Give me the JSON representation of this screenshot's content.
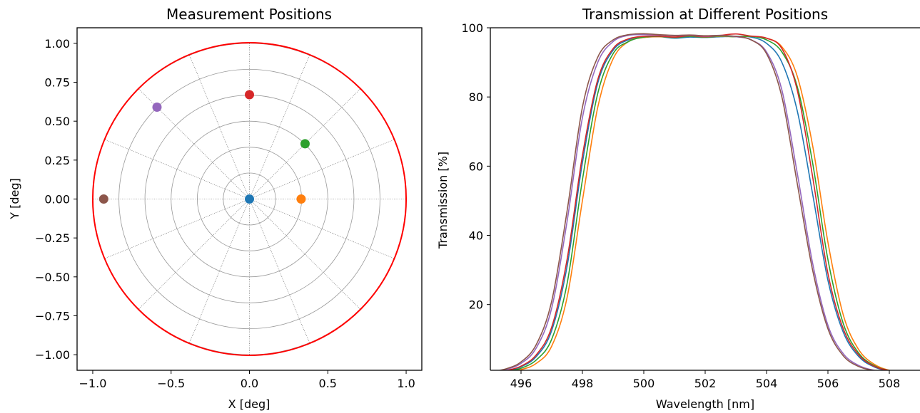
{
  "chart_data": [
    {
      "type": "scatter",
      "title": "Measurement Positions",
      "xlabel": "X [deg]",
      "ylabel": "Y [deg]",
      "xlim": [
        -1.1,
        1.1
      ],
      "ylim": [
        -1.1,
        1.1
      ],
      "xticks": [
        -1.0,
        -0.5,
        0.0,
        0.5,
        1.0
      ],
      "xtick_labels": [
        "−1.0",
        "−0.5",
        "0.0",
        "0.5",
        "1.0"
      ],
      "yticks": [
        1.0,
        0.75,
        0.5,
        0.25,
        0.0,
        -0.25,
        -0.5,
        -0.75,
        -1.0
      ],
      "ytick_labels": [
        "1.00",
        "0.75",
        "0.50",
        "0.25",
        "0.00",
        "−0.25",
        "−0.50",
        "−0.75",
        "−1.00"
      ],
      "boundary_circle": {
        "radius": 1.0,
        "color": "#ff0000"
      },
      "polar_grid": {
        "ring_radii": [
          0.167,
          0.333,
          0.5,
          0.667,
          0.833,
          1.0
        ],
        "spoke_angles_deg": [
          0,
          22.5,
          45,
          67.5,
          90,
          112.5,
          135,
          157.5,
          180,
          202.5,
          225,
          247.5,
          270,
          292.5,
          315,
          337.5
        ]
      },
      "points": [
        {
          "x": 0.0,
          "y": 0.0,
          "color": "#1f77b4"
        },
        {
          "x": 0.33,
          "y": 0.0,
          "color": "#ff7f0e"
        },
        {
          "x": 0.355,
          "y": 0.355,
          "color": "#2ca02c"
        },
        {
          "x": 0.0,
          "y": 0.67,
          "color": "#d62728"
        },
        {
          "x": -0.59,
          "y": 0.59,
          "color": "#9467bd"
        },
        {
          "x": -0.93,
          "y": 0.0,
          "color": "#8c564b"
        }
      ]
    },
    {
      "type": "line",
      "title": "Transmission at Different Positions",
      "xlabel": "Wavelength [nm]",
      "ylabel": "Transmission [%]",
      "xlim": [
        495,
        509
      ],
      "ylim": [
        1,
        100
      ],
      "xticks": [
        496,
        498,
        500,
        502,
        504,
        506,
        508
      ],
      "xtick_labels": [
        "496",
        "498",
        "500",
        "502",
        "504",
        "506",
        "508"
      ],
      "yticks": [
        20,
        40,
        60,
        80,
        100
      ],
      "ytick_labels": [
        "20",
        "40",
        "60",
        "80",
        "100"
      ],
      "series": [
        {
          "color": "#1f77b4",
          "x": [
            495.0,
            495.5,
            496.0,
            496.5,
            497.0,
            497.5,
            498.0,
            498.5,
            499.0,
            499.5,
            500.0,
            500.5,
            501.0,
            501.5,
            502.0,
            502.5,
            503.0,
            503.5,
            504.0,
            504.5,
            505.0,
            505.5,
            506.0,
            506.5,
            507.0,
            507.5,
            508.0,
            508.5,
            509.0
          ],
          "y": [
            0.3,
            0.8,
            2.0,
            5.0,
            12.5,
            31.0,
            61.0,
            84.0,
            93.5,
            96.5,
            97.2,
            97.4,
            97.0,
            97.3,
            97.2,
            97.4,
            97.5,
            97.3,
            95.5,
            90.0,
            76.0,
            52.0,
            27.0,
            12.0,
            5.0,
            2.0,
            0.8,
            0.3,
            0.1
          ]
        },
        {
          "color": "#ff7f0e",
          "x": [
            495.0,
            495.5,
            496.0,
            496.5,
            497.0,
            497.5,
            498.0,
            498.5,
            499.0,
            499.5,
            500.0,
            500.5,
            501.0,
            501.5,
            502.0,
            502.5,
            503.0,
            503.5,
            504.0,
            504.5,
            505.0,
            505.5,
            506.0,
            506.5,
            507.0,
            507.5,
            508.0,
            508.5,
            509.0
          ],
          "y": [
            0.1,
            0.4,
            1.2,
            3.0,
            8.0,
            22.0,
            50.0,
            77.0,
            91.0,
            96.0,
            97.2,
            97.4,
            97.3,
            97.5,
            97.3,
            97.5,
            97.4,
            97.5,
            97.0,
            94.5,
            86.0,
            66.0,
            38.0,
            17.0,
            7.0,
            2.8,
            1.0,
            0.4,
            0.1
          ]
        },
        {
          "color": "#2ca02c",
          "x": [
            495.0,
            495.5,
            496.0,
            496.5,
            497.0,
            497.5,
            498.0,
            498.5,
            499.0,
            499.5,
            500.0,
            500.5,
            501.0,
            501.5,
            502.0,
            502.5,
            503.0,
            503.5,
            504.0,
            504.5,
            505.0,
            505.5,
            506.0,
            506.5,
            507.0,
            507.5,
            508.0,
            508.5,
            509.0
          ],
          "y": [
            0.2,
            0.6,
            1.6,
            4.0,
            10.0,
            26.0,
            56.0,
            81.0,
            92.5,
            96.0,
            97.3,
            97.5,
            97.2,
            97.5,
            97.3,
            97.6,
            97.4,
            97.5,
            96.5,
            93.0,
            83.0,
            61.0,
            33.0,
            14.5,
            6.0,
            2.4,
            0.9,
            0.3,
            0.1
          ]
        },
        {
          "color": "#d62728",
          "x": [
            495.0,
            495.5,
            496.0,
            496.5,
            497.0,
            497.5,
            498.0,
            498.5,
            499.0,
            499.5,
            500.0,
            500.5,
            501.0,
            501.5,
            502.0,
            502.5,
            503.0,
            503.5,
            504.0,
            504.5,
            505.0,
            505.5,
            506.0,
            506.5,
            507.0,
            507.5,
            508.0,
            508.5,
            509.0
          ],
          "y": [
            0.3,
            0.9,
            2.2,
            5.5,
            13.5,
            33.0,
            63.0,
            85.0,
            94.0,
            96.8,
            97.5,
            97.6,
            97.3,
            97.7,
            97.4,
            97.8,
            98.2,
            97.6,
            97.0,
            94.0,
            82.0,
            57.0,
            29.0,
            13.0,
            5.5,
            2.2,
            0.9,
            0.3,
            0.1
          ]
        },
        {
          "color": "#9467bd",
          "x": [
            495.0,
            495.5,
            496.0,
            496.5,
            497.0,
            497.5,
            498.0,
            498.5,
            499.0,
            499.5,
            500.0,
            500.5,
            501.0,
            501.5,
            502.0,
            502.5,
            503.0,
            503.5,
            504.0,
            504.5,
            505.0,
            505.5,
            506.0,
            506.5,
            507.0,
            507.5,
            508.0,
            508.5,
            509.0
          ],
          "y": [
            0.4,
            1.2,
            3.0,
            7.5,
            19.0,
            44.0,
            74.0,
            90.0,
            96.0,
            97.8,
            98.0,
            97.9,
            97.7,
            97.8,
            97.6,
            97.7,
            97.4,
            96.5,
            93.0,
            82.0,
            58.0,
            32.0,
            14.0,
            5.8,
            2.4,
            1.0,
            0.4,
            0.1,
            0.05
          ]
        },
        {
          "color": "#8c564b",
          "x": [
            495.0,
            495.5,
            496.0,
            496.5,
            497.0,
            497.5,
            498.0,
            498.5,
            499.0,
            499.5,
            500.0,
            500.5,
            501.0,
            501.5,
            502.0,
            502.5,
            503.0,
            503.5,
            504.0,
            504.5,
            505.0,
            505.5,
            506.0,
            506.5,
            507.0,
            507.5,
            508.0,
            508.5,
            509.0
          ],
          "y": [
            0.5,
            1.4,
            3.4,
            8.5,
            21.0,
            47.0,
            77.0,
            91.5,
            96.5,
            98.0,
            98.3,
            98.0,
            97.8,
            97.9,
            97.7,
            97.8,
            97.5,
            96.5,
            92.5,
            80.0,
            55.0,
            30.0,
            13.0,
            5.2,
            2.1,
            0.9,
            0.3,
            0.1,
            0.05
          ]
        }
      ]
    }
  ]
}
